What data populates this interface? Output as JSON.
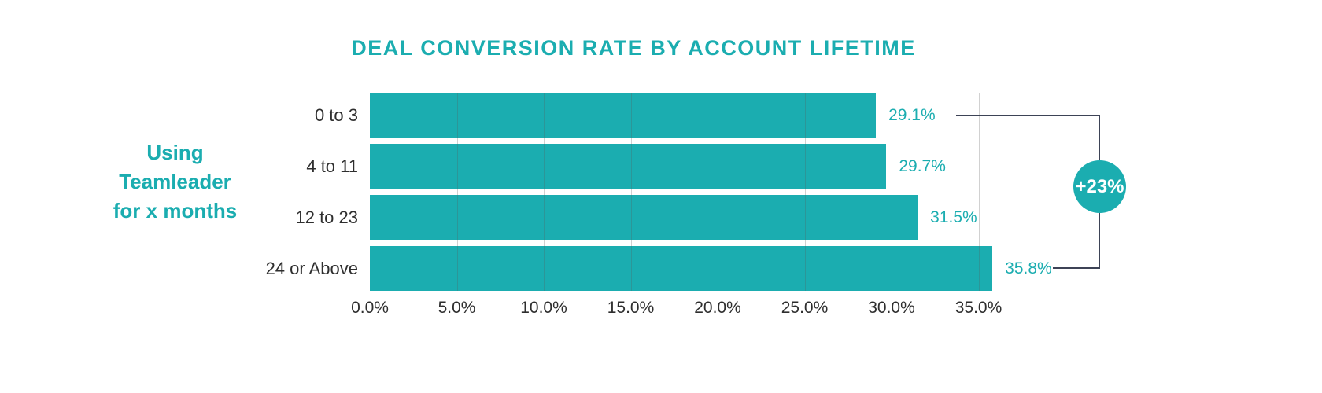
{
  "title": "DEAL CONVERSION RATE BY ACCOUNT LIFETIME",
  "side_label": {
    "lines": [
      "Using",
      "Teamleader",
      "for x months"
    ]
  },
  "annotation": {
    "badge": "+23%"
  },
  "colors": {
    "teal": "#1badb0",
    "bracket_line": "#3d4356",
    "axis_text": "#2e2e2e"
  },
  "chart_data": {
    "type": "bar",
    "orientation": "horizontal",
    "title": "DEAL CONVERSION RATE BY ACCOUNT LIFETIME",
    "categories": [
      "0 to 3",
      "4 to 11",
      "12 to 23",
      "24 or Above"
    ],
    "values": [
      29.1,
      29.7,
      31.5,
      35.8
    ],
    "value_labels": [
      "29.1%",
      "29.7%",
      "31.5%",
      "35.8%"
    ],
    "x_ticks": [
      "0.0%",
      "5.0%",
      "10.0%",
      "15.0%",
      "20.0%",
      "25.0%",
      "30.0%",
      "35.0%"
    ],
    "x_tick_values": [
      0,
      5,
      10,
      15,
      20,
      25,
      30,
      35
    ],
    "xlim": [
      0,
      36.2
    ],
    "grid": true,
    "legend": false,
    "annotation_badge": "+23%",
    "ylabel": "Using Teamleader for x months"
  }
}
